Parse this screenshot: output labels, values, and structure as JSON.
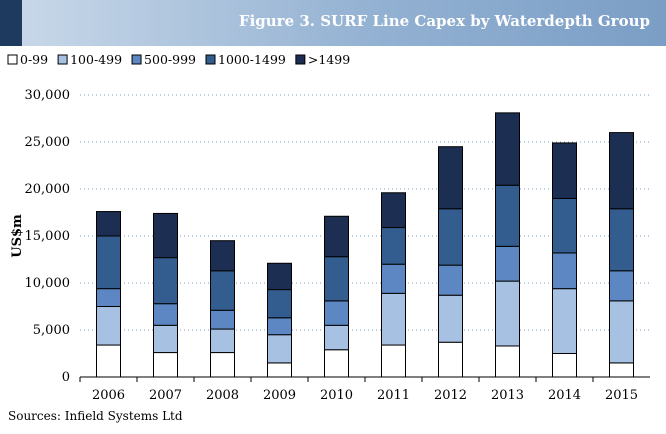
{
  "header": {
    "title": "Figure 3.  SURF Line Capex by Waterdepth Group"
  },
  "source_text": "Sources:  Infield Systems Ltd",
  "chart_data": {
    "type": "bar",
    "stacked": true,
    "title": "SURF Line Capex by Waterdepth Group",
    "xlabel": "",
    "ylabel": "US$m",
    "ylim": [
      0,
      30000
    ],
    "yticks": [
      0,
      5000,
      10000,
      15000,
      20000,
      25000,
      30000
    ],
    "ytick_labels": [
      "0",
      "5,000",
      "10,000",
      "15,000",
      "20,000",
      "25,000",
      "30,000"
    ],
    "grid": true,
    "legend_position": "top-left",
    "categories": [
      "2006",
      "2007",
      "2008",
      "2009",
      "2010",
      "2011",
      "2012",
      "2013",
      "2014",
      "2015"
    ],
    "series": [
      {
        "name": "0-99",
        "color": "#ffffff",
        "values": [
          3400,
          2600,
          2600,
          1500,
          2900,
          3400,
          3700,
          3300,
          2500,
          1500
        ]
      },
      {
        "name": "100-499",
        "color": "#a7c1e3",
        "values": [
          4100,
          2900,
          2500,
          3000,
          2600,
          5500,
          5000,
          6900,
          6900,
          6600
        ]
      },
      {
        "name": "500-999",
        "color": "#5c87c2",
        "values": [
          1900,
          2300,
          2000,
          1800,
          2600,
          3100,
          3200,
          3700,
          3800,
          3200
        ]
      },
      {
        "name": "1000-1499",
        "color": "#335d8e",
        "values": [
          5600,
          4900,
          4200,
          3000,
          4700,
          3900,
          6000,
          6500,
          5800,
          6600
        ]
      },
      {
        "name": ">1499",
        "color": "#1c2f52",
        "values": [
          2600,
          4700,
          3200,
          2800,
          4300,
          3700,
          6600,
          7700,
          5900,
          8100
        ]
      }
    ]
  }
}
